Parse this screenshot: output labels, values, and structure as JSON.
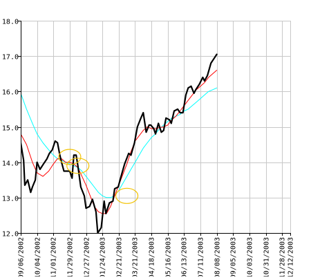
{
  "chart_data": {
    "type": "line",
    "title": "",
    "xlabel": "",
    "ylabel": "",
    "ylim": [
      12.0,
      18.0
    ],
    "y_ticks": [
      "12.0",
      "13.0",
      "14.0",
      "15.0",
      "16.0",
      "17.0",
      "18.0"
    ],
    "y_axis_side": "left",
    "grid": "on",
    "legend": "none",
    "x_range": [
      "09/06/2002",
      "12/12/2003"
    ],
    "x_ticks": [
      "09/06/2002",
      "10/04/2002",
      "11/01/2002",
      "11/29/2002",
      "12/27/2002",
      "01/24/2003",
      "02/21/2003",
      "03/21/2003",
      "04/18/2003",
      "05/16/2003",
      "06/13/2003",
      "07/11/2003",
      "08/08/2003",
      "09/05/2003",
      "10/03/2003",
      "10/31/2003",
      "11/28/2003",
      "12/12/2003"
    ],
    "series": [
      {
        "color": "#000000",
        "width": 2.2,
        "points": [
          [
            "09/06/2002",
            14.55
          ],
          [
            "09/11/2002",
            14.05
          ],
          [
            "09/13/2002",
            13.35
          ],
          [
            "09/18/2002",
            13.5
          ],
          [
            "09/23/2002",
            13.15
          ],
          [
            "09/26/2002",
            13.3
          ],
          [
            "10/01/2002",
            13.5
          ],
          [
            "10/04/2002",
            14.0
          ],
          [
            "10/09/2002",
            13.8
          ],
          [
            "10/15/2002",
            13.95
          ],
          [
            "10/21/2002",
            14.1
          ],
          [
            "10/25/2002",
            14.25
          ],
          [
            "10/30/2002",
            14.35
          ],
          [
            "11/04/2002",
            14.6
          ],
          [
            "11/08/2002",
            14.55
          ],
          [
            "11/12/2002",
            14.2
          ],
          [
            "11/15/2002",
            14.0
          ],
          [
            "11/19/2002",
            13.75
          ],
          [
            "11/26/2002",
            13.75
          ],
          [
            "11/29/2002",
            13.75
          ],
          [
            "12/03/2002",
            13.55
          ],
          [
            "12/06/2002",
            14.2
          ],
          [
            "12/10/2002",
            14.2
          ],
          [
            "12/13/2002",
            13.9
          ],
          [
            "12/18/2002",
            13.3
          ],
          [
            "12/24/2002",
            13.05
          ],
          [
            "12/27/2002",
            12.7
          ],
          [
            "01/02/2003",
            12.75
          ],
          [
            "01/07/2003",
            12.95
          ],
          [
            "01/13/2003",
            12.6
          ],
          [
            "01/16/2003",
            12.0
          ],
          [
            "01/22/2003",
            12.15
          ],
          [
            "01/27/2003",
            12.9
          ],
          [
            "01/30/2003",
            12.55
          ],
          [
            "02/05/2003",
            12.85
          ],
          [
            "02/11/2003",
            12.9
          ],
          [
            "02/14/2003",
            13.25
          ],
          [
            "02/20/2003",
            13.3
          ],
          [
            "02/25/2003",
            13.6
          ],
          [
            "03/03/2003",
            13.95
          ],
          [
            "03/10/2003",
            14.25
          ],
          [
            "03/14/2003",
            14.2
          ],
          [
            "03/20/2003",
            14.55
          ],
          [
            "03/25/2003",
            15.0
          ],
          [
            "03/31/2003",
            15.25
          ],
          [
            "04/04/2003",
            15.4
          ],
          [
            "04/09/2003",
            14.85
          ],
          [
            "04/14/2003",
            15.05
          ],
          [
            "04/17/2003",
            15.05
          ],
          [
            "04/22/2003",
            14.95
          ],
          [
            "04/25/2003",
            14.8
          ],
          [
            "04/30/2003",
            15.1
          ],
          [
            "05/05/2003",
            14.85
          ],
          [
            "05/09/2003",
            14.9
          ],
          [
            "05/13/2003",
            15.25
          ],
          [
            "05/19/2003",
            15.2
          ],
          [
            "05/22/2003",
            15.1
          ],
          [
            "05/27/2003",
            15.45
          ],
          [
            "06/02/2003",
            15.5
          ],
          [
            "06/06/2003",
            15.4
          ],
          [
            "06/11/2003",
            15.4
          ],
          [
            "06/16/2003",
            15.9
          ],
          [
            "06/20/2003",
            16.1
          ],
          [
            "06/25/2003",
            16.15
          ],
          [
            "06/30/2003",
            15.95
          ],
          [
            "07/03/2003",
            16.05
          ],
          [
            "07/09/2003",
            16.2
          ],
          [
            "07/15/2003",
            16.4
          ],
          [
            "07/18/2003",
            16.3
          ],
          [
            "07/23/2003",
            16.45
          ],
          [
            "07/29/2003",
            16.8
          ],
          [
            "08/04/2003",
            16.95
          ],
          [
            "08/08/2003",
            17.05
          ]
        ]
      },
      {
        "color": "#ff0000",
        "width": 1,
        "points": [
          [
            "09/06/2002",
            14.8
          ],
          [
            "09/16/2002",
            14.5
          ],
          [
            "09/26/2002",
            14.0
          ],
          [
            "10/04/2002",
            13.7
          ],
          [
            "10/14/2002",
            13.6
          ],
          [
            "10/24/2002",
            13.75
          ],
          [
            "11/01/2002",
            13.95
          ],
          [
            "11/08/2002",
            14.1
          ],
          [
            "11/15/2002",
            14.1
          ],
          [
            "11/22/2002",
            14.0
          ],
          [
            "11/29/2002",
            14.0
          ],
          [
            "12/06/2002",
            13.95
          ],
          [
            "12/13/2002",
            13.85
          ],
          [
            "12/20/2002",
            13.6
          ],
          [
            "12/27/2002",
            13.35
          ],
          [
            "01/03/2003",
            13.05
          ],
          [
            "01/10/2003",
            12.75
          ],
          [
            "01/17/2003",
            12.6
          ],
          [
            "01/24/2003",
            12.55
          ],
          [
            "01/31/2003",
            12.55
          ],
          [
            "02/07/2003",
            12.75
          ],
          [
            "02/14/2003",
            13.05
          ],
          [
            "02/21/2003",
            13.35
          ],
          [
            "02/28/2003",
            13.65
          ],
          [
            "03/07/2003",
            13.95
          ],
          [
            "03/14/2003",
            14.3
          ],
          [
            "03/21/2003",
            14.6
          ],
          [
            "03/28/2003",
            14.75
          ],
          [
            "04/04/2003",
            14.9
          ],
          [
            "04/11/2003",
            15.0
          ],
          [
            "04/18/2003",
            14.95
          ],
          [
            "04/25/2003",
            14.95
          ],
          [
            "05/02/2003",
            14.98
          ],
          [
            "05/09/2003",
            15.0
          ],
          [
            "05/16/2003",
            15.05
          ],
          [
            "05/23/2003",
            15.2
          ],
          [
            "05/30/2003",
            15.3
          ],
          [
            "06/06/2003",
            15.45
          ],
          [
            "06/13/2003",
            15.6
          ],
          [
            "06/20/2003",
            15.75
          ],
          [
            "06/27/2003",
            15.9
          ],
          [
            "07/04/2003",
            16.05
          ],
          [
            "07/11/2003",
            16.15
          ],
          [
            "07/18/2003",
            16.25
          ],
          [
            "07/25/2003",
            16.4
          ],
          [
            "08/01/2003",
            16.5
          ],
          [
            "08/08/2003",
            16.6
          ]
        ]
      },
      {
        "color": "#00ffff",
        "width": 1,
        "points": [
          [
            "09/06/2002",
            15.95
          ],
          [
            "09/16/2002",
            15.5
          ],
          [
            "09/26/2002",
            15.1
          ],
          [
            "10/04/2002",
            14.8
          ],
          [
            "10/14/2002",
            14.55
          ],
          [
            "10/24/2002",
            14.35
          ],
          [
            "11/01/2002",
            14.2
          ],
          [
            "11/08/2002",
            14.1
          ],
          [
            "11/15/2002",
            14.05
          ],
          [
            "11/22/2002",
            14.0
          ],
          [
            "11/29/2002",
            13.95
          ],
          [
            "12/06/2002",
            13.9
          ],
          [
            "12/13/2002",
            13.85
          ],
          [
            "12/20/2002",
            13.75
          ],
          [
            "12/27/2002",
            13.6
          ],
          [
            "01/03/2003",
            13.45
          ],
          [
            "01/10/2003",
            13.3
          ],
          [
            "01/17/2003",
            13.15
          ],
          [
            "01/24/2003",
            13.05
          ],
          [
            "01/31/2003",
            13.0
          ],
          [
            "02/07/2003",
            13.0
          ],
          [
            "02/14/2003",
            13.05
          ],
          [
            "02/21/2003",
            13.2
          ],
          [
            "02/28/2003",
            13.4
          ],
          [
            "03/07/2003",
            13.6
          ],
          [
            "03/14/2003",
            13.8
          ],
          [
            "03/21/2003",
            14.0
          ],
          [
            "03/28/2003",
            14.2
          ],
          [
            "04/04/2003",
            14.4
          ],
          [
            "04/11/2003",
            14.55
          ],
          [
            "04/18/2003",
            14.7
          ],
          [
            "04/25/2003",
            14.8
          ],
          [
            "05/02/2003",
            14.95
          ],
          [
            "05/09/2003",
            15.05
          ],
          [
            "05/16/2003",
            15.15
          ],
          [
            "05/23/2003",
            15.25
          ],
          [
            "05/30/2003",
            15.3
          ],
          [
            "06/06/2003",
            15.35
          ],
          [
            "06/13/2003",
            15.45
          ],
          [
            "06/20/2003",
            15.5
          ],
          [
            "06/27/2003",
            15.6
          ],
          [
            "07/04/2003",
            15.7
          ],
          [
            "07/11/2003",
            15.8
          ],
          [
            "07/18/2003",
            15.9
          ],
          [
            "07/25/2003",
            16.0
          ],
          [
            "08/01/2003",
            16.05
          ],
          [
            "08/08/2003",
            16.1
          ]
        ]
      }
    ],
    "crossover_markers": [
      {
        "date": "11/29/2002",
        "value": 14.15,
        "color": "#f2c200"
      },
      {
        "date": "12/13/2002",
        "value": 13.9,
        "color": "#f2c200"
      },
      {
        "date": "03/07/2003",
        "value": 13.05,
        "color": "#f2c200"
      }
    ]
  }
}
